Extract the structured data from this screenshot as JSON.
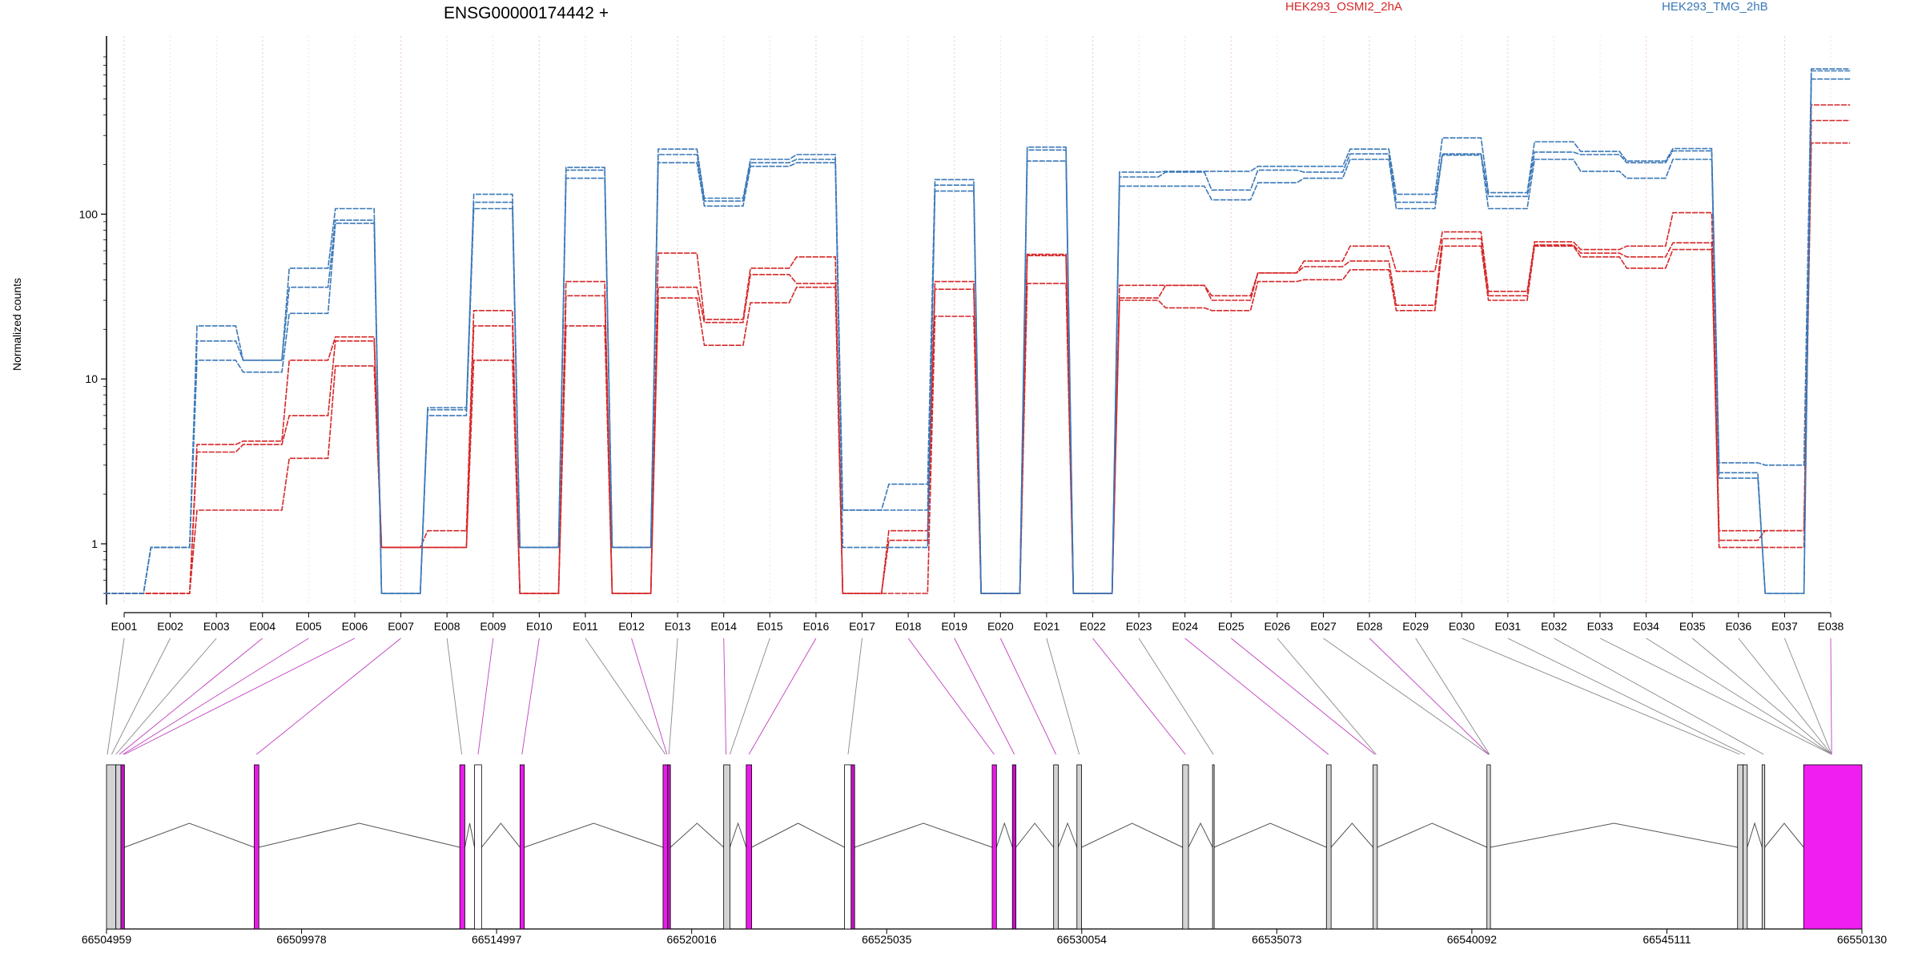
{
  "chart_data": {
    "type": "line",
    "title": "ENSG00000174442 +",
    "ylabel": "Normalized counts",
    "yscale": "log",
    "ylim": [
      0.5,
      900
    ],
    "yticks": [
      1,
      10,
      100
    ],
    "ytick_labels": [
      "1",
      "10",
      "100"
    ],
    "exons": [
      "E001",
      "E002",
      "E003",
      "E004",
      "E005",
      "E006",
      "E007",
      "E008",
      "E009",
      "E010",
      "E011",
      "E012",
      "E013",
      "E014",
      "E015",
      "E016",
      "E017",
      "E018",
      "E019",
      "E020",
      "E021",
      "E022",
      "E023",
      "E024",
      "E025",
      "E026",
      "E027",
      "E028",
      "E029",
      "E030",
      "E031",
      "E032",
      "E033",
      "E034",
      "E035",
      "E036",
      "E037",
      "E038"
    ],
    "legend": [
      {
        "name": "HEK293_OSMI2_2hA",
        "color": "#d62728"
      },
      {
        "name": "HEK293_TMG_2hB",
        "color": "#3a78b8"
      }
    ],
    "series": [
      {
        "group": "HEK293_OSMI2_2hA",
        "color": "#d62728",
        "values": [
          0.5,
          0.5,
          1.6,
          1.6,
          3.3,
          12,
          0.95,
          0.95,
          13,
          0.5,
          21,
          0.5,
          31,
          16,
          29,
          36,
          0.5,
          0.5,
          24,
          0.5,
          38,
          0.5,
          30,
          27,
          26,
          39,
          40,
          46,
          26,
          64,
          30,
          64,
          55,
          47,
          61,
          0.95,
          0.95,
          270
        ]
      },
      {
        "group": "HEK293_OSMI2_2hA",
        "color": "#d62728",
        "values": [
          0.5,
          0.5,
          3.6,
          4,
          6,
          17,
          0.95,
          0.95,
          21,
          0.5,
          32,
          0.5,
          36,
          22,
          43,
          38,
          0.5,
          1.05,
          35,
          0.5,
          57,
          0.5,
          31,
          37,
          30,
          44,
          48,
          52,
          28,
          71,
          32,
          65,
          58,
          55,
          67,
          1.05,
          1.2,
          370
        ]
      },
      {
        "group": "HEK293_OSMI2_2hA",
        "color": "#d62728",
        "values": [
          0.5,
          0.5,
          4,
          4.2,
          13,
          18,
          0.95,
          1.2,
          26,
          0.5,
          39,
          0.5,
          58,
          23,
          47,
          55,
          0.5,
          1.2,
          39,
          0.5,
          56,
          0.5,
          37,
          37,
          32,
          44,
          52,
          64,
          45,
          78,
          34,
          68,
          61,
          64,
          102,
          1.2,
          1.2,
          460
        ]
      },
      {
        "group": "HEK293_TMG_2hB",
        "color": "#3a78b8",
        "values": [
          0.5,
          0.95,
          13,
          11,
          25,
          88,
          0.5,
          6,
          108,
          0.95,
          165,
          0.95,
          205,
          112,
          195,
          205,
          0.95,
          0.95,
          138,
          0.5,
          210,
          0.5,
          148,
          148,
          122,
          155,
          165,
          215,
          108,
          228,
          108,
          215,
          182,
          165,
          215,
          2.5,
          0.5,
          660
        ]
      },
      {
        "group": "HEK293_TMG_2hB",
        "color": "#3a78b8",
        "values": [
          0.5,
          0.95,
          17,
          13,
          36,
          92,
          0.5,
          6.5,
          118,
          0.95,
          185,
          0.95,
          230,
          120,
          205,
          215,
          1.6,
          1.6,
          150,
          0.5,
          245,
          0.5,
          168,
          180,
          140,
          185,
          180,
          232,
          118,
          232,
          128,
          238,
          230,
          205,
          242,
          2.7,
          0.5,
          740
        ]
      },
      {
        "group": "HEK293_TMG_2hB",
        "color": "#3a78b8",
        "values": [
          0.5,
          0.95,
          21,
          13,
          47,
          108,
          0.5,
          6.7,
          132,
          0.95,
          192,
          0.95,
          248,
          125,
          215,
          230,
          1.6,
          2.3,
          162,
          0.5,
          255,
          0.5,
          180,
          182,
          182,
          195,
          195,
          248,
          132,
          290,
          135,
          275,
          240,
          210,
          250,
          3.1,
          3,
          760
        ]
      }
    ],
    "gene_model": {
      "coordinate_ticks": [
        "66504959",
        "66509978",
        "66514997",
        "66520016",
        "66525035",
        "66530054",
        "66535073",
        "66540092",
        "66545111",
        "66550130"
      ],
      "start": 66504959,
      "end": 66550130
    }
  }
}
